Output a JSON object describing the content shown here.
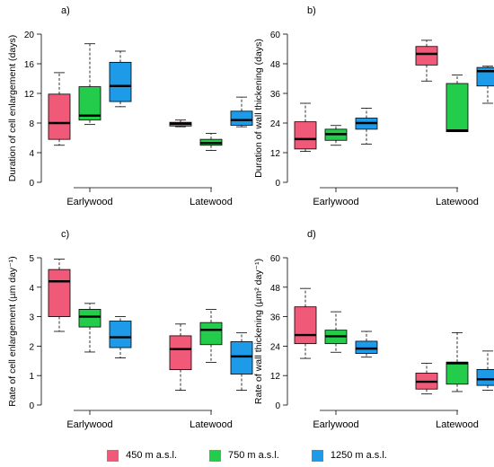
{
  "colors": {
    "450": "#f05a78",
    "750": "#24cc4b",
    "1250": "#1e9be8"
  },
  "legend": {
    "items": [
      {
        "key": "450",
        "label": "450 m a.s.l."
      },
      {
        "key": "750",
        "label": "750 m a.s.l."
      },
      {
        "key": "1250",
        "label": "1250 m a.s.l."
      }
    ]
  },
  "chart_data": [
    {
      "type": "box",
      "panel": "a)",
      "ylabel": "Duration of cell enlargement (days)",
      "ylim": [
        0,
        20
      ],
      "yticks": [
        "0",
        "4",
        "8",
        "12",
        "16",
        "20"
      ],
      "categories": [
        "Earlywood",
        "Latewood"
      ],
      "series_keys": [
        "450",
        "750",
        "1250"
      ],
      "boxes": [
        [
          {
            "min": 5.0,
            "q1": 5.8,
            "median": 8.0,
            "q3": 11.9,
            "max": 14.8
          },
          {
            "min": 7.8,
            "q1": 8.4,
            "median": 9.0,
            "q3": 12.9,
            "max": 18.7
          },
          {
            "min": 10.2,
            "q1": 10.9,
            "median": 13.0,
            "q3": 16.2,
            "max": 17.7
          }
        ],
        [
          {
            "min": 7.5,
            "q1": 7.6,
            "median": 7.9,
            "q3": 8.1,
            "max": 8.4
          },
          {
            "min": 4.3,
            "q1": 5.0,
            "median": 5.3,
            "q3": 5.8,
            "max": 6.6
          },
          {
            "min": 7.5,
            "q1": 7.7,
            "median": 8.4,
            "q3": 9.6,
            "max": 11.5
          }
        ]
      ]
    },
    {
      "type": "box",
      "panel": "b)",
      "ylabel": "Duration of wall thickening (days)",
      "ylim": [
        0,
        60
      ],
      "yticks": [
        "0",
        "12",
        "24",
        "36",
        "48",
        "60"
      ],
      "categories": [
        "Earlywood",
        "Latewood"
      ],
      "series_keys": [
        "450",
        "750",
        "1250"
      ],
      "boxes": [
        [
          {
            "min": 12.5,
            "q1": 13.5,
            "median": 17.5,
            "q3": 24.5,
            "max": 32.0
          },
          {
            "min": 15.0,
            "q1": 17.0,
            "median": 19.5,
            "q3": 21.5,
            "max": 23.0
          },
          {
            "min": 15.5,
            "q1": 21.5,
            "median": 24.0,
            "q3": 26.0,
            "max": 30.0
          }
        ],
        [
          {
            "min": 41.0,
            "q1": 47.5,
            "median": 52.0,
            "q3": 55.0,
            "max": 57.5
          },
          {
            "min": 20.5,
            "q1": 20.5,
            "median": 21.0,
            "q3": 40.0,
            "max": 43.5
          },
          {
            "min": 32.0,
            "q1": 39.0,
            "median": 45.0,
            "q3": 46.5,
            "max": 47.0
          }
        ]
      ]
    },
    {
      "type": "box",
      "panel": "c)",
      "ylabel": "Rate of cell enlargement (µm day⁻¹)",
      "ylim": [
        0,
        5
      ],
      "yticks": [
        "0",
        "1",
        "2",
        "3",
        "4",
        "5"
      ],
      "categories": [
        "Earlywood",
        "Latewood"
      ],
      "series_keys": [
        "450",
        "750",
        "1250"
      ],
      "boxes": [
        [
          {
            "min": 2.5,
            "q1": 3.0,
            "median": 4.2,
            "q3": 4.6,
            "max": 4.95
          },
          {
            "min": 1.8,
            "q1": 2.65,
            "median": 3.0,
            "q3": 3.25,
            "max": 3.45
          },
          {
            "min": 1.6,
            "q1": 1.95,
            "median": 2.3,
            "q3": 2.85,
            "max": 3.0
          }
        ],
        [
          {
            "min": 0.5,
            "q1": 1.2,
            "median": 1.9,
            "q3": 2.35,
            "max": 2.75
          },
          {
            "min": 1.45,
            "q1": 2.05,
            "median": 2.55,
            "q3": 2.8,
            "max": 3.25
          },
          {
            "min": 0.5,
            "q1": 1.05,
            "median": 1.65,
            "q3": 2.15,
            "max": 2.45
          }
        ]
      ]
    },
    {
      "type": "box",
      "panel": "d)",
      "ylabel": "Rate of wall thickening (µm² day⁻¹)",
      "ylim": [
        0,
        60
      ],
      "yticks": [
        "0",
        "12",
        "24",
        "36",
        "48",
        "60"
      ],
      "categories": [
        "Earlywood",
        "Latewood"
      ],
      "series_keys": [
        "450",
        "750",
        "1250"
      ],
      "boxes": [
        [
          {
            "min": 19.0,
            "q1": 25.0,
            "median": 28.5,
            "q3": 40.0,
            "max": 47.5
          },
          {
            "min": 21.5,
            "q1": 25.0,
            "median": 28.0,
            "q3": 30.5,
            "max": 38.0
          },
          {
            "min": 19.5,
            "q1": 21.0,
            "median": 23.0,
            "q3": 26.0,
            "max": 30.0
          }
        ],
        [
          {
            "min": 4.5,
            "q1": 6.5,
            "median": 9.5,
            "q3": 13.0,
            "max": 17.0
          },
          {
            "min": 5.5,
            "q1": 8.5,
            "median": 17.0,
            "q3": 17.5,
            "max": 29.5
          },
          {
            "min": 6.0,
            "q1": 8.0,
            "median": 10.5,
            "q3": 14.5,
            "max": 22.0
          }
        ]
      ]
    }
  ]
}
